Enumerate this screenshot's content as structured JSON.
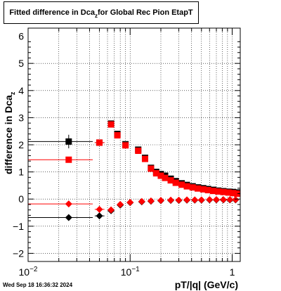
{
  "header": {
    "title_main": "Fitted difference in Dca",
    "title_sub": "z",
    "title_rest": " for Global Rec Pion EtapT"
  },
  "footer": {
    "timestamp": "Wed Sep 18 16:36:32 2024"
  },
  "chart_data": {
    "type": "scatter",
    "title": "Fitted difference in Dca_z for Global Rec Pion EtapT",
    "xlabel": "pT/|q| (GeV/c)",
    "ylabel_main": "difference in Dca",
    "ylabel_sub": "z",
    "xscale": "log",
    "xlim": [
      0.01,
      1.2
    ],
    "ylim": [
      -2.3,
      6.3
    ],
    "yticks": [
      -2,
      -1,
      0,
      1,
      2,
      3,
      4,
      5,
      6
    ],
    "xtick_labels": [
      {
        "value": 0.01,
        "label": "10",
        "exp": "−2"
      },
      {
        "value": 0.1,
        "label": "10",
        "exp": "−1"
      },
      {
        "value": 1,
        "label": "1",
        "exp": ""
      }
    ],
    "grid": true,
    "series": [
      {
        "marker": "square",
        "color": "#000000",
        "points": [
          {
            "x": 0.025,
            "y": 2.12,
            "xerr": [
              0.01,
              0.043
            ],
            "yerr": 0.25
          },
          {
            "x": 0.05,
            "y": 2.08,
            "xerr": [
              0.045,
              0.056
            ]
          },
          {
            "x": 0.065,
            "y": 2.78
          },
          {
            "x": 0.075,
            "y": 2.4
          },
          {
            "x": 0.09,
            "y": 2.02
          },
          {
            "x": 0.12,
            "y": 1.82
          },
          {
            "x": 0.14,
            "y": 1.52
          },
          {
            "x": 0.16,
            "y": 1.15
          },
          {
            "x": 0.18,
            "y": 1.0
          },
          {
            "x": 0.2,
            "y": 0.92
          },
          {
            "x": 0.22,
            "y": 0.86
          },
          {
            "x": 0.25,
            "y": 0.75
          },
          {
            "x": 0.28,
            "y": 0.66
          },
          {
            "x": 0.32,
            "y": 0.58
          },
          {
            "x": 0.36,
            "y": 0.52
          },
          {
            "x": 0.41,
            "y": 0.47
          },
          {
            "x": 0.46,
            "y": 0.43
          },
          {
            "x": 0.52,
            "y": 0.4
          },
          {
            "x": 0.58,
            "y": 0.37
          },
          {
            "x": 0.65,
            "y": 0.34
          },
          {
            "x": 0.73,
            "y": 0.31
          },
          {
            "x": 0.82,
            "y": 0.29
          },
          {
            "x": 0.92,
            "y": 0.27
          },
          {
            "x": 1.02,
            "y": 0.26
          },
          {
            "x": 1.12,
            "y": 0.24
          }
        ]
      },
      {
        "marker": "square",
        "color": "#ff0000",
        "points": [
          {
            "x": 0.025,
            "y": 1.45,
            "xerr": [
              0.01,
              0.043
            ]
          },
          {
            "x": 0.05,
            "y": 2.08,
            "xerr": [
              0.045,
              0.056
            ]
          },
          {
            "x": 0.065,
            "y": 2.75
          },
          {
            "x": 0.075,
            "y": 2.35
          },
          {
            "x": 0.09,
            "y": 1.98
          },
          {
            "x": 0.12,
            "y": 1.78
          },
          {
            "x": 0.14,
            "y": 1.48
          },
          {
            "x": 0.16,
            "y": 1.12
          },
          {
            "x": 0.18,
            "y": 0.95
          },
          {
            "x": 0.2,
            "y": 0.86
          },
          {
            "x": 0.22,
            "y": 0.78
          },
          {
            "x": 0.25,
            "y": 0.69
          },
          {
            "x": 0.28,
            "y": 0.6
          },
          {
            "x": 0.32,
            "y": 0.53
          },
          {
            "x": 0.36,
            "y": 0.47
          },
          {
            "x": 0.41,
            "y": 0.43
          },
          {
            "x": 0.46,
            "y": 0.39
          },
          {
            "x": 0.52,
            "y": 0.36
          },
          {
            "x": 0.58,
            "y": 0.33
          },
          {
            "x": 0.65,
            "y": 0.3
          },
          {
            "x": 0.73,
            "y": 0.28
          },
          {
            "x": 0.82,
            "y": 0.26
          },
          {
            "x": 0.92,
            "y": 0.24
          },
          {
            "x": 1.02,
            "y": 0.22
          },
          {
            "x": 1.12,
            "y": 0.2
          }
        ]
      },
      {
        "marker": "diamond",
        "color": "#000000",
        "points": [
          {
            "x": 0.025,
            "y": -0.68,
            "xerr": [
              0.01,
              0.043
            ]
          },
          {
            "x": 0.05,
            "y": -0.62,
            "xerr": [
              0.045,
              0.056
            ]
          },
          {
            "x": 0.065,
            "y": -0.43
          },
          {
            "x": 0.08,
            "y": -0.22
          },
          {
            "x": 0.1,
            "y": -0.13
          },
          {
            "x": 0.13,
            "y": -0.1
          },
          {
            "x": 0.16,
            "y": -0.08
          },
          {
            "x": 0.2,
            "y": -0.06
          },
          {
            "x": 0.25,
            "y": -0.05
          },
          {
            "x": 0.3,
            "y": -0.05
          },
          {
            "x": 0.36,
            "y": -0.04
          },
          {
            "x": 0.43,
            "y": -0.04
          },
          {
            "x": 0.5,
            "y": -0.04
          },
          {
            "x": 0.6,
            "y": -0.03
          },
          {
            "x": 0.7,
            "y": -0.03
          },
          {
            "x": 0.82,
            "y": -0.03
          },
          {
            "x": 0.95,
            "y": -0.03
          },
          {
            "x": 1.08,
            "y": -0.03
          }
        ]
      },
      {
        "marker": "diamond",
        "color": "#ff0000",
        "points": [
          {
            "x": 0.025,
            "y": -0.18,
            "xerr": [
              0.01,
              0.043
            ]
          },
          {
            "x": 0.05,
            "y": -0.38,
            "xerr": [
              0.045,
              0.056
            ]
          },
          {
            "x": 0.065,
            "y": -0.4
          },
          {
            "x": 0.08,
            "y": -0.2
          },
          {
            "x": 0.1,
            "y": -0.12
          },
          {
            "x": 0.13,
            "y": -0.09
          },
          {
            "x": 0.16,
            "y": -0.07
          },
          {
            "x": 0.2,
            "y": -0.05
          },
          {
            "x": 0.25,
            "y": -0.04
          },
          {
            "x": 0.3,
            "y": -0.04
          },
          {
            "x": 0.36,
            "y": -0.03
          },
          {
            "x": 0.43,
            "y": -0.03
          },
          {
            "x": 0.5,
            "y": -0.03
          },
          {
            "x": 0.6,
            "y": -0.02
          },
          {
            "x": 0.7,
            "y": -0.02
          },
          {
            "x": 0.82,
            "y": -0.02
          },
          {
            "x": 0.95,
            "y": -0.02
          },
          {
            "x": 1.08,
            "y": -0.02
          }
        ]
      }
    ]
  }
}
